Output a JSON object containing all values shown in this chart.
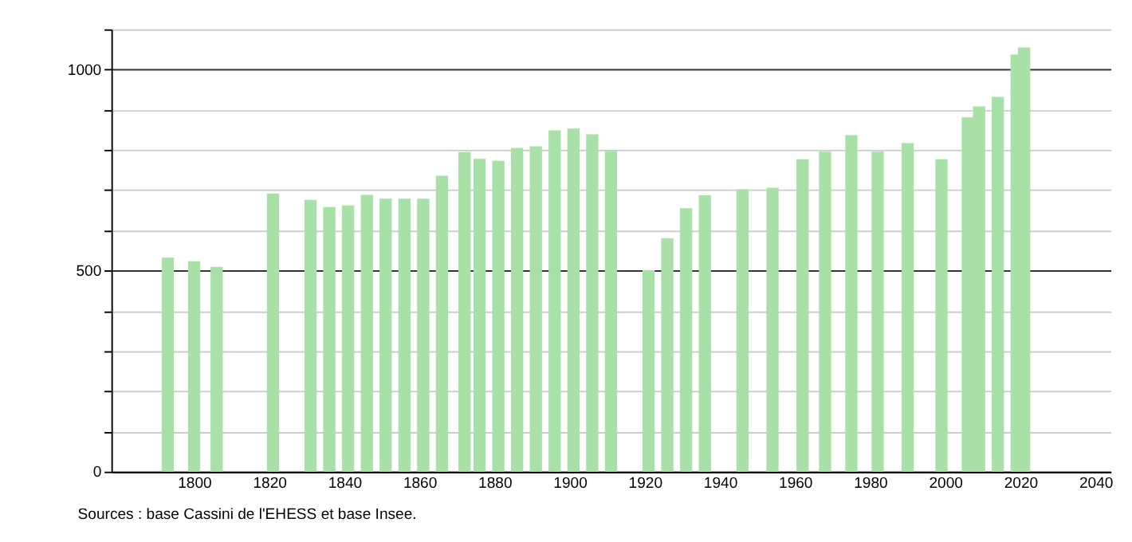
{
  "chart_data": {
    "type": "bar",
    "x": [
      1793,
      1800,
      1806,
      1821,
      1831,
      1836,
      1841,
      1846,
      1851,
      1856,
      1861,
      1866,
      1872,
      1876,
      1881,
      1886,
      1891,
      1896,
      1901,
      1906,
      1911,
      1921,
      1926,
      1931,
      1936,
      1946,
      1954,
      1962,
      1968,
      1975,
      1982,
      1990,
      1999,
      2006,
      2009,
      2014,
      2019,
      2021
    ],
    "values": [
      532,
      523,
      509,
      691,
      676,
      658,
      662,
      688,
      679,
      679,
      679,
      736,
      795,
      778,
      773,
      805,
      809,
      849,
      853,
      839,
      797,
      501,
      580,
      655,
      687,
      702,
      706,
      777,
      796,
      837,
      796,
      817,
      777,
      881,
      908,
      932,
      1037,
      1055
    ],
    "color": "#a8e0a8",
    "xlim": [
      1780,
      2042
    ],
    "xticks": [
      1800,
      1820,
      1840,
      1860,
      1880,
      1900,
      1920,
      1940,
      1960,
      1980,
      2000,
      2020,
      2040
    ],
    "ylim": [
      0,
      1100
    ],
    "yticks": [
      0,
      {
        "value": 100,
        "label": null
      },
      {
        "value": 200,
        "label": null
      },
      {
        "value": 300,
        "label": null
      },
      {
        "value": 400,
        "label": null
      },
      500,
      {
        "value": 600,
        "label": null
      },
      {
        "value": 700,
        "label": null
      },
      {
        "value": 800,
        "label": null
      },
      {
        "value": 900,
        "label": null
      },
      1000,
      {
        "value": 1100,
        "label": null
      }
    ],
    "grid": "y",
    "annotations": [
      "Sources : base Cassini de l'EHESS et base Insee."
    ]
  }
}
